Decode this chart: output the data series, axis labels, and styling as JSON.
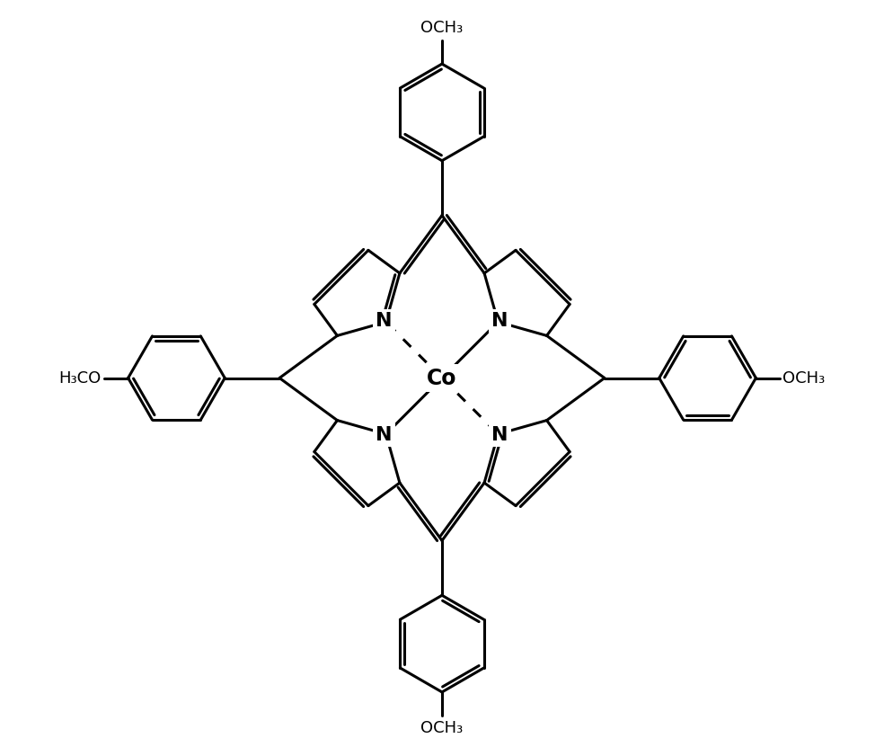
{
  "bg_color": "#ffffff",
  "line_color": "#000000",
  "lw": 2.2,
  "figsize": [
    9.84,
    8.41
  ],
  "dpi": 100,
  "xlim": [
    -9.5,
    9.5
  ],
  "ylim": [
    -9.5,
    9.5
  ]
}
